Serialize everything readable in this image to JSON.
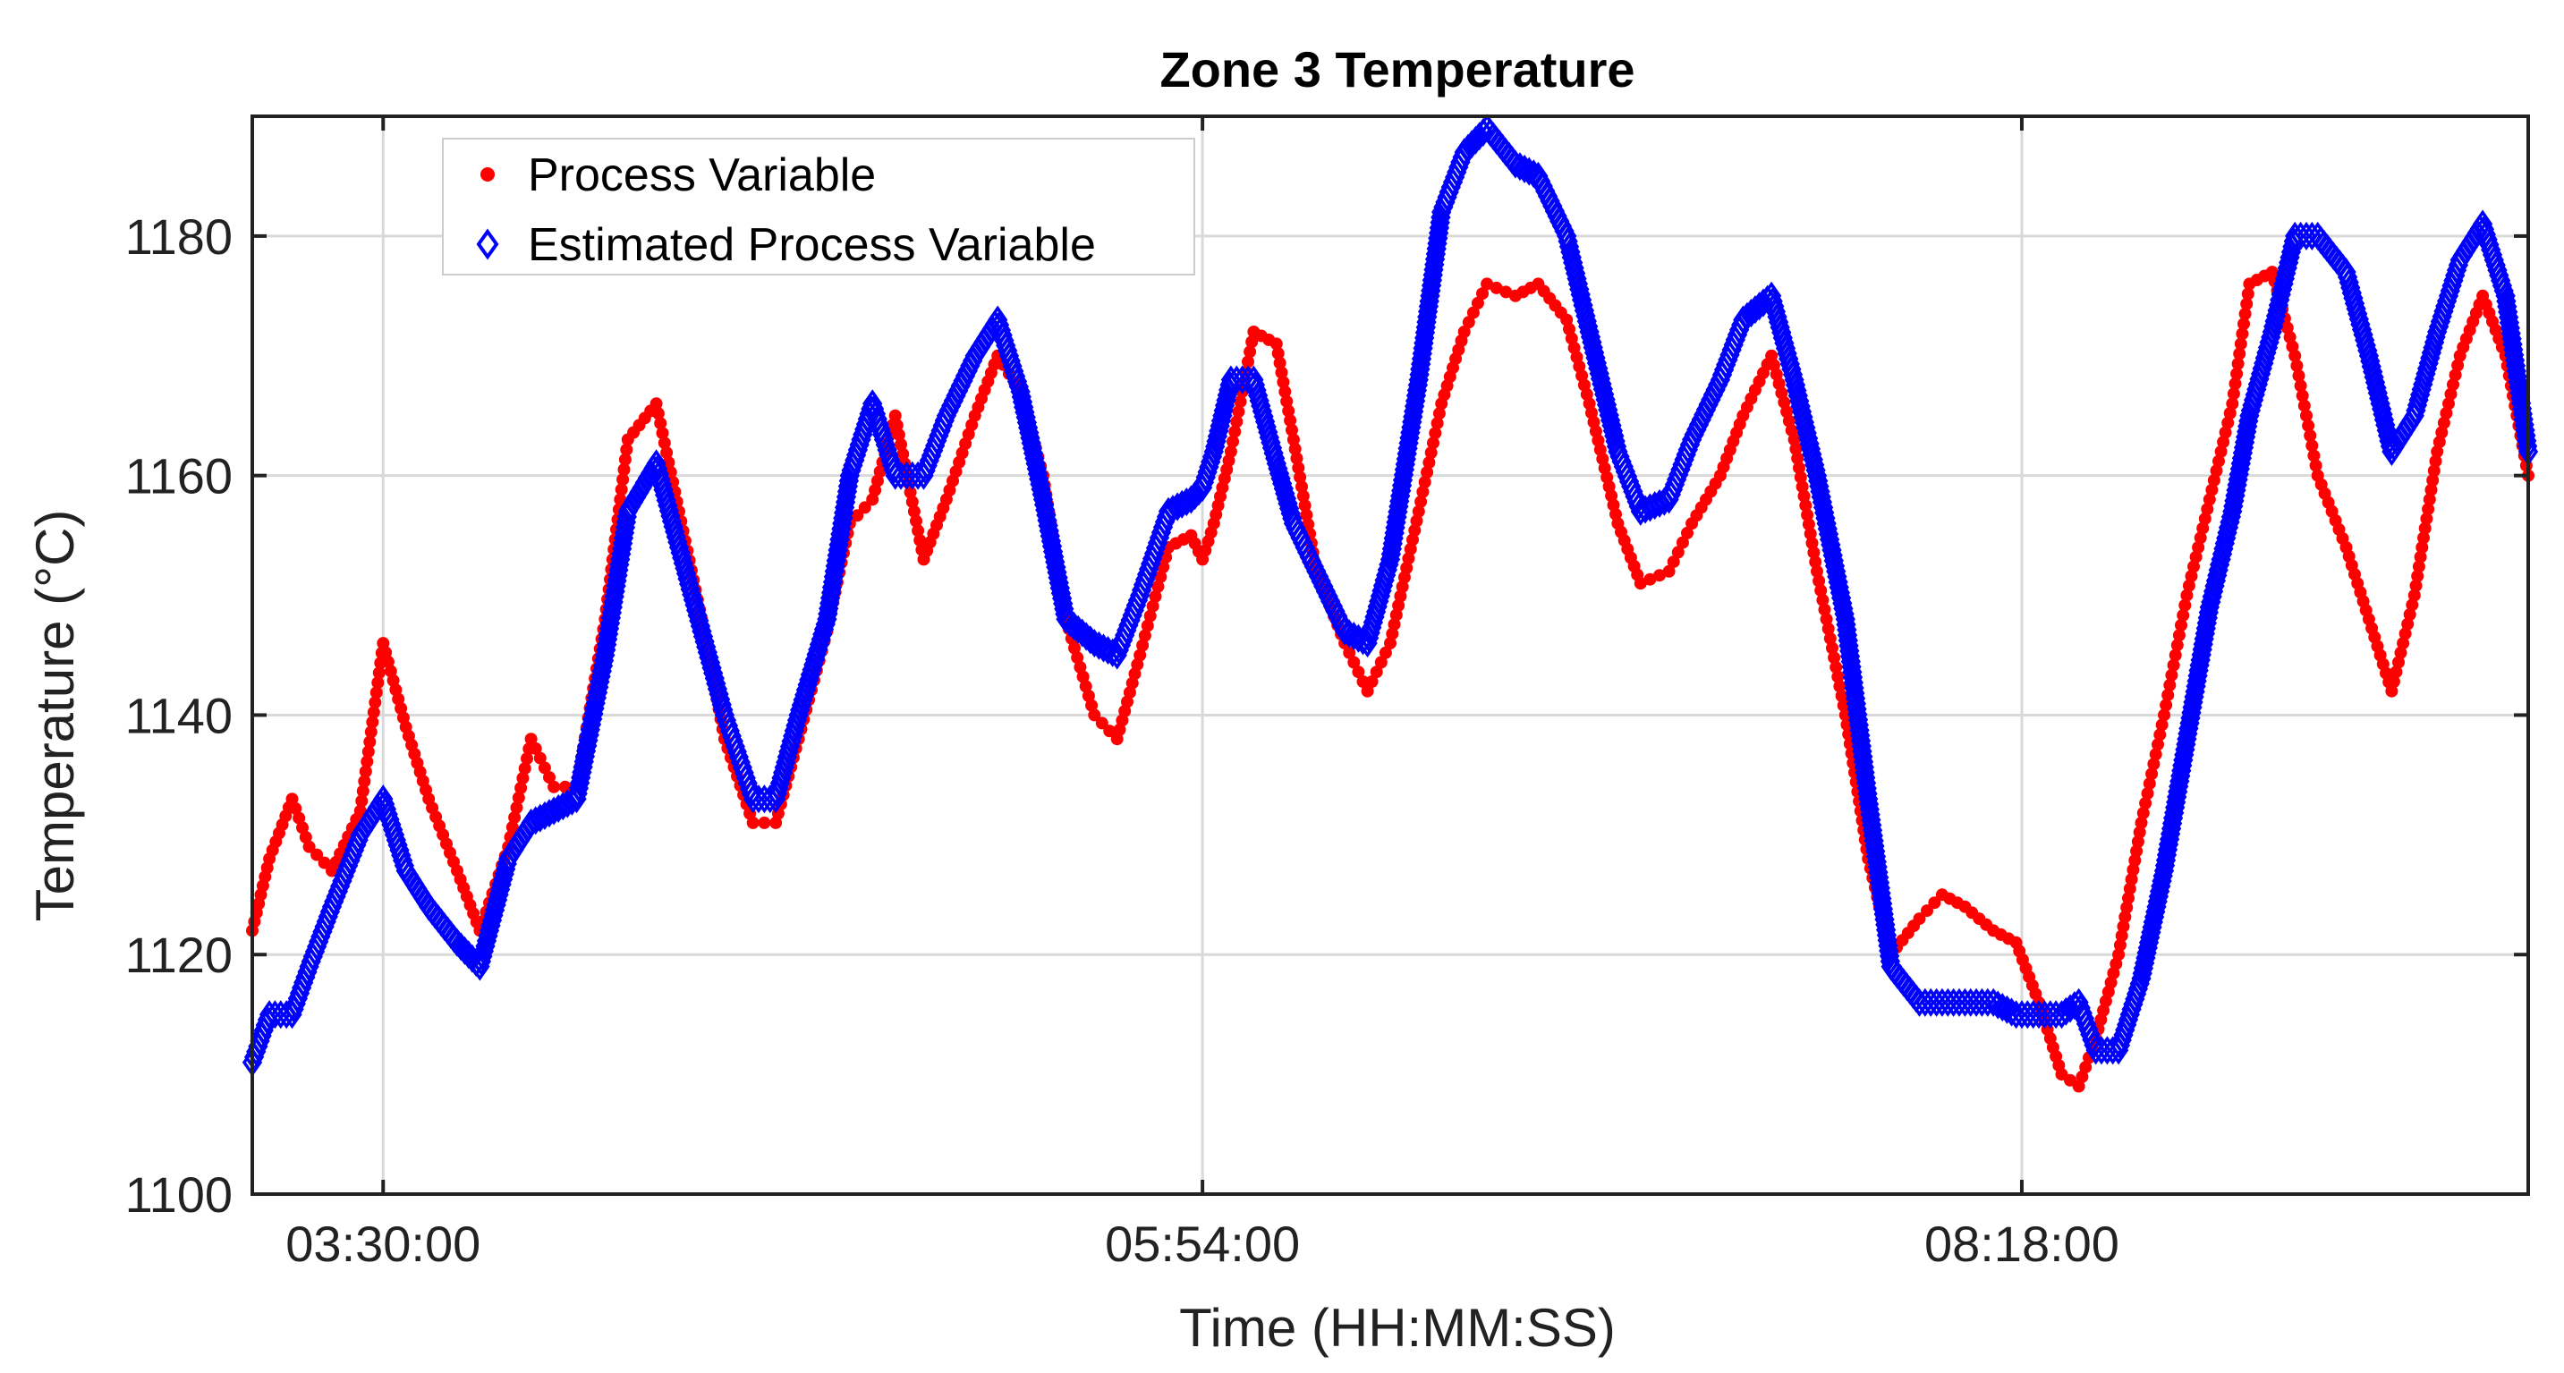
{
  "chart_data": {
    "type": "scatter",
    "title": "Zone 3 Temperature",
    "xlabel": "Time (HH:MM:SS)",
    "ylabel": "Temperature (°C)",
    "x_unit": "minutes since 00:00",
    "xlim": [
      187,
      587
    ],
    "ylim": [
      1100,
      1190
    ],
    "yticks": [
      1100,
      1120,
      1140,
      1160,
      1180
    ],
    "xticks": [
      {
        "value": 210,
        "label": "03:30:00"
      },
      {
        "value": 354,
        "label": "05:54:00"
      },
      {
        "value": 498,
        "label": "08:18:00"
      }
    ],
    "grid": true,
    "legend_position": "top-left",
    "series": [
      {
        "name": "Process Variable",
        "marker": "dot",
        "color": "#ff0000",
        "x": [
          187,
          190,
          194,
          197,
          201,
          206,
          210,
          214,
          218,
          223,
          227,
          232,
          236,
          240,
          244,
          249,
          253,
          258,
          262,
          266,
          270,
          275,
          279,
          283,
          288,
          292,
          296,
          300,
          305,
          309,
          314,
          318,
          322,
          326,
          330,
          335,
          339,
          343,
          348,
          352,
          354,
          356,
          359,
          363,
          367,
          370,
          374,
          379,
          383,
          387,
          392,
          396,
          400,
          404,
          409,
          413,
          418,
          422,
          427,
          431,
          436,
          440,
          445,
          449,
          454,
          458,
          462,
          467,
          471,
          475,
          480,
          484,
          488,
          493,
          497,
          501,
          505,
          508,
          511,
          515,
          519,
          523,
          527,
          531,
          535,
          538,
          542,
          546,
          550,
          555,
          559,
          563,
          567,
          571,
          575,
          579,
          583,
          587
        ],
        "y": [
          1122,
          1128,
          1133,
          1129,
          1127,
          1132,
          1146,
          1139,
          1133,
          1127,
          1122,
          1129,
          1138,
          1134,
          1134,
          1148,
          1163,
          1166,
          1157,
          1148,
          1138,
          1131,
          1131,
          1138,
          1147,
          1156,
          1158,
          1165,
          1153,
          1158,
          1165,
          1170,
          1167,
          1160,
          1148,
          1140,
          1138,
          1145,
          1154,
          1155,
          1153,
          1156,
          1162,
          1172,
          1171,
          1163,
          1152,
          1146,
          1142,
          1146,
          1157,
          1166,
          1172,
          1176,
          1175,
          1176,
          1173,
          1166,
          1156,
          1151,
          1152,
          1156,
          1160,
          1165,
          1170,
          1163,
          1152,
          1140,
          1128,
          1120,
          1123,
          1125,
          1124,
          1122,
          1121,
          1116,
          1110,
          1109,
          1113,
          1120,
          1131,
          1140,
          1150,
          1158,
          1166,
          1176,
          1177,
          1170,
          1160,
          1154,
          1148,
          1142,
          1150,
          1162,
          1170,
          1175,
          1170,
          1160
        ]
      },
      {
        "name": "Estimated Process Variable",
        "marker": "diamond",
        "color": "#0000ff",
        "x": [
          187,
          190,
          194,
          197,
          201,
          206,
          210,
          214,
          218,
          223,
          227,
          232,
          236,
          240,
          244,
          249,
          253,
          258,
          262,
          266,
          270,
          275,
          279,
          283,
          288,
          292,
          296,
          300,
          305,
          309,
          314,
          318,
          322,
          326,
          330,
          335,
          339,
          343,
          348,
          352,
          354,
          356,
          359,
          363,
          367,
          370,
          374,
          379,
          383,
          387,
          392,
          396,
          400,
          404,
          409,
          413,
          418,
          422,
          427,
          431,
          436,
          440,
          445,
          449,
          454,
          458,
          462,
          467,
          471,
          475,
          480,
          484,
          488,
          493,
          497,
          501,
          505,
          508,
          511,
          515,
          519,
          523,
          527,
          531,
          535,
          538,
          542,
          546,
          550,
          555,
          559,
          563,
          567,
          571,
          575,
          579,
          583,
          587
        ],
        "y": [
          1111,
          1115,
          1115,
          1119,
          1124,
          1130,
          1133,
          1127,
          1124,
          1121,
          1119,
          1128,
          1131,
          1132,
          1133,
          1145,
          1157,
          1161,
          1154,
          1147,
          1140,
          1133,
          1133,
          1140,
          1148,
          1160,
          1166,
          1160,
          1160,
          1165,
          1170,
          1173,
          1167,
          1158,
          1148,
          1146,
          1145,
          1150,
          1157,
          1158,
          1159,
          1162,
          1168,
          1168,
          1161,
          1156,
          1152,
          1147,
          1146,
          1153,
          1168,
          1182,
          1187,
          1189,
          1186,
          1185,
          1180,
          1172,
          1162,
          1157,
          1158,
          1163,
          1168,
          1173,
          1175,
          1168,
          1160,
          1148,
          1133,
          1119,
          1116,
          1116,
          1116,
          1116,
          1115,
          1115,
          1115,
          1116,
          1112,
          1112,
          1118,
          1127,
          1138,
          1149,
          1157,
          1165,
          1172,
          1180,
          1180,
          1177,
          1170,
          1162,
          1165,
          1172,
          1178,
          1181,
          1175,
          1162
        ]
      }
    ]
  }
}
